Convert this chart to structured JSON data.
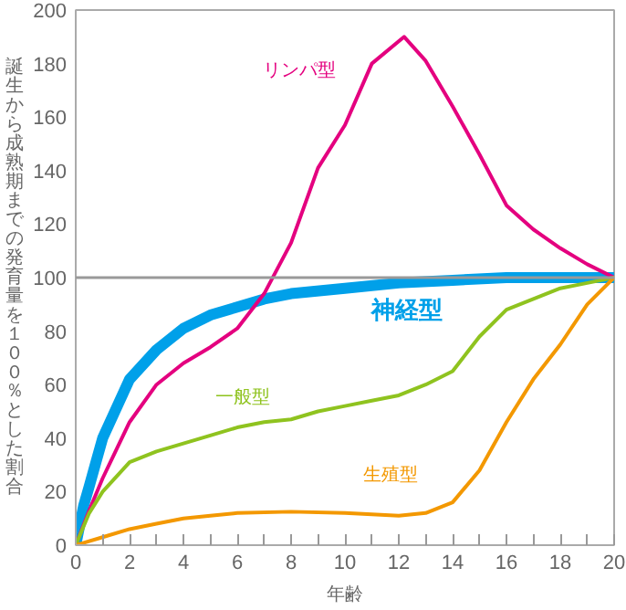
{
  "chart_data": {
    "type": "line",
    "xlabel": "年齢",
    "ylabel": "誕生から成熟期までの発育量を１００％とした割合",
    "xlim": [
      0,
      20
    ],
    "ylim": [
      0,
      200
    ],
    "xticks": [
      0,
      {
        "value": 1,
        "label": null
      },
      2,
      {
        "value": 3,
        "label": null
      },
      4,
      {
        "value": 5,
        "label": null
      },
      6,
      {
        "value": 7,
        "label": null
      },
      8,
      {
        "value": 9,
        "label": null
      },
      10,
      {
        "value": 11,
        "label": null
      },
      12,
      {
        "value": 13,
        "label": null
      },
      14,
      {
        "value": 15,
        "label": null
      },
      16,
      {
        "value": 17,
        "label": null
      },
      18,
      {
        "value": 19,
        "label": null
      },
      20
    ],
    "yticks": [
      0,
      20,
      40,
      60,
      80,
      100,
      120,
      140,
      160,
      180,
      200
    ],
    "grid": false,
    "marker": "none",
    "line_style": "solid",
    "ref_lines": [
      {
        "axis": "y",
        "value": 100,
        "color": "#999999"
      }
    ],
    "series": [
      {
        "name": "神経型",
        "color": "#00a0e9",
        "x": [
          0,
          0.3,
          0.5,
          1,
          2,
          3,
          4,
          5,
          6,
          7,
          8,
          10,
          12,
          14,
          16,
          18,
          20
        ],
        "values": [
          0,
          15,
          22,
          40,
          62,
          73,
          81,
          86,
          89,
          92,
          94,
          96,
          98,
          99,
          100,
          100,
          100
        ]
      },
      {
        "name": "リンパ型",
        "color": "#e4007f",
        "x": [
          0,
          0.5,
          1,
          2,
          3,
          4,
          5,
          6,
          7,
          8,
          9,
          10,
          11,
          12.2,
          13,
          14,
          15,
          16,
          17,
          18,
          19,
          20
        ],
        "values": [
          0,
          13,
          25,
          46,
          60,
          68,
          74,
          81,
          94,
          113,
          141,
          157,
          180,
          190,
          181,
          164,
          146,
          127,
          118,
          111,
          105,
          100
        ]
      },
      {
        "name": "一般型",
        "color": "#8fc31f",
        "x": [
          0,
          0.5,
          1,
          2,
          3,
          4,
          5,
          6,
          7,
          8,
          9,
          10,
          11,
          12,
          13,
          14,
          15,
          16,
          17,
          18,
          19,
          20
        ],
        "values": [
          0,
          12,
          20,
          31,
          35,
          38,
          41,
          44,
          46,
          47,
          50,
          52,
          54,
          56,
          60,
          65,
          78,
          88,
          92,
          96,
          98,
          100
        ]
      },
      {
        "name": "生殖型",
        "color": "#f39800",
        "x": [
          0,
          1,
          2,
          3,
          4,
          5,
          6,
          8,
          10,
          12,
          13,
          14,
          15,
          16,
          17,
          18,
          19,
          20
        ],
        "values": [
          0,
          3,
          6,
          8,
          10,
          11,
          12,
          12.5,
          12,
          11,
          12,
          16,
          28,
          46,
          62,
          75,
          90,
          100
        ]
      }
    ]
  }
}
